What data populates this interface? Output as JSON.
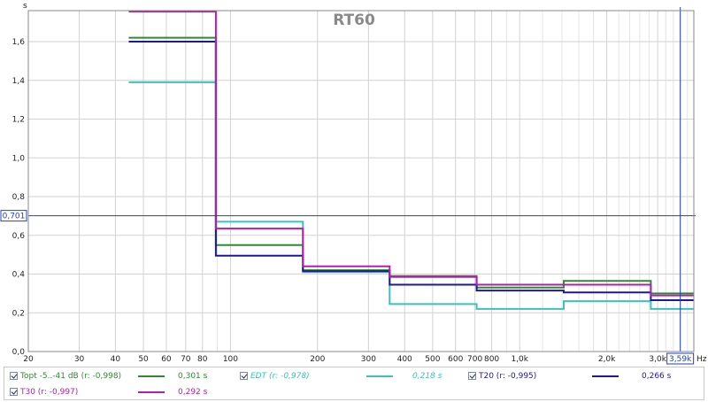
{
  "chart_data": {
    "type": "line",
    "title": "RT60",
    "ylabel": "s",
    "xlabel": "Hz",
    "x_scale": "log",
    "xlim": [
      20,
      4000
    ],
    "ylim": [
      0,
      1.76
    ],
    "grid": true,
    "x_ticks": [
      {
        "v": 20,
        "label": "20"
      },
      {
        "v": 30,
        "label": "30"
      },
      {
        "v": 40,
        "label": "40"
      },
      {
        "v": 50,
        "label": "50"
      },
      {
        "v": 60,
        "label": "60"
      },
      {
        "v": 70,
        "label": "70"
      },
      {
        "v": 80,
        "label": "80"
      },
      {
        "v": 100,
        "label": "100"
      },
      {
        "v": 200,
        "label": "200"
      },
      {
        "v": 300,
        "label": "300"
      },
      {
        "v": 400,
        "label": "400"
      },
      {
        "v": 500,
        "label": "500"
      },
      {
        "v": 600,
        "label": "600"
      },
      {
        "v": 700,
        "label": "700"
      },
      {
        "v": 800,
        "label": "800"
      },
      {
        "v": 1000,
        "label": "1,0k"
      },
      {
        "v": 2000,
        "label": "2,0k"
      },
      {
        "v": 3000,
        "label": "3,0k"
      }
    ],
    "x_minor": [
      90,
      900,
      1200,
      1400,
      1600,
      1800,
      2200,
      2400,
      2600,
      2800,
      3200,
      3400,
      3600,
      3800
    ],
    "y_ticks": [
      {
        "v": 0,
        "label": "0,0"
      },
      {
        "v": 0.2,
        "label": "0,2"
      },
      {
        "v": 0.4,
        "label": "0,4"
      },
      {
        "v": 0.6,
        "label": "0,6"
      },
      {
        "v": 0.8,
        "label": "0,8"
      },
      {
        "v": 1.0,
        "label": "1,0"
      },
      {
        "v": 1.2,
        "label": "1,2"
      },
      {
        "v": 1.4,
        "label": "1,4"
      },
      {
        "v": 1.6,
        "label": "1,6"
      }
    ],
    "cursor": {
      "x": 3590,
      "x_label": "3,59k",
      "y": 0.701,
      "y_label": "0,701"
    },
    "band_edges": [
      44.5,
      89,
      178,
      355,
      710,
      1420,
      2840,
      4000
    ],
    "series": [
      {
        "name": "Topt -5..-41 dB (r: -0,998)",
        "color": "#2e8b2e",
        "value": "0,301 s",
        "values": [
          1.62,
          0.55,
          0.42,
          0.39,
          0.33,
          0.365,
          0.3
        ]
      },
      {
        "name": "EDT (r: -0,978)",
        "color": "#3cc0c0",
        "value": "0,218 s",
        "values": [
          1.39,
          0.67,
          0.41,
          0.245,
          0.22,
          0.26,
          0.22
        ]
      },
      {
        "name": "T20 (r: -0,995)",
        "color": "#1a1a99",
        "value": "0,266 s",
        "values": [
          1.6,
          0.495,
          0.415,
          0.345,
          0.315,
          0.305,
          0.265
        ]
      },
      {
        "name": "T30 (r: -0,997)",
        "color": "#b020b0",
        "value": "0,292 s",
        "values": [
          1.755,
          0.635,
          0.44,
          0.385,
          0.345,
          0.345,
          0.29
        ]
      }
    ]
  }
}
